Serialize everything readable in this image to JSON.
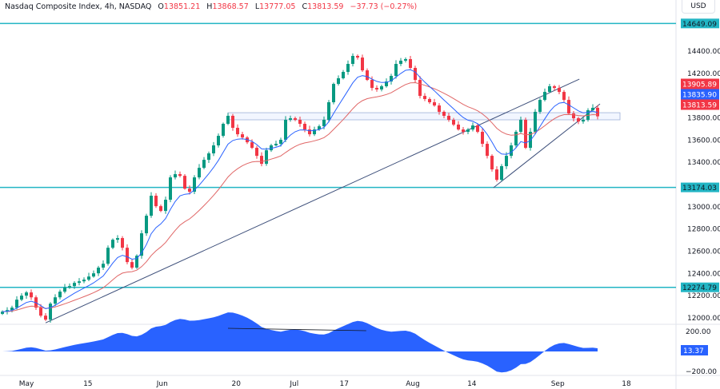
{
  "header": {
    "symbol": "Nasdaq Composite Index, 4h, NASDAQ",
    "open_k": "O",
    "open": "13851.21",
    "high_k": "H",
    "high": "13868.57",
    "low_k": "L",
    "low": "13777.05",
    "close_k": "C",
    "close": "13813.59",
    "change": "−37.73 (−0.27%)"
  },
  "currency": "USD",
  "colors": {
    "up": "#089981",
    "down": "#f23645",
    "level": "#22b5c4",
    "fast_ma": "#2962ff",
    "slow_ma": "#e06666",
    "trend": "#3d4f7a",
    "oscillator": "#2962ff"
  },
  "chart_data": {
    "type": "candlestick",
    "timeframe": "4h",
    "price_axis": {
      "ticks": [
        14400,
        14200,
        13800,
        13600,
        13400,
        13000,
        12800,
        12600,
        12400,
        12200,
        12000
      ],
      "range": [
        11950,
        14880
      ]
    },
    "price_tick_labels": [
      "14400.00",
      "14200.00",
      "13800.00",
      "13600.00",
      "13400.00",
      "13000.00",
      "12800.00",
      "12600.00",
      "12400.00",
      "12200.00",
      "12000.00"
    ],
    "time_ticks": [
      {
        "label": "May",
        "at": 5
      },
      {
        "label": "15",
        "at": 17.8
      },
      {
        "label": "Jun",
        "at": 33.3
      },
      {
        "label": "20",
        "at": 48.7
      },
      {
        "label": "Jul",
        "at": 60.8
      },
      {
        "label": "17",
        "at": 71.2
      },
      {
        "label": "Aug",
        "at": 85.5
      },
      {
        "label": "14",
        "at": 97.8
      },
      {
        "label": "Sep",
        "at": 115.7
      },
      {
        "label": "18",
        "at": 130
      }
    ],
    "closes": [
      12056,
      12070,
      12092,
      12164,
      12200,
      12229,
      12185,
      12092,
      12020,
      11984,
      12128,
      12185,
      12236,
      12272,
      12286,
      12315,
      12329,
      12344,
      12372,
      12401,
      12452,
      12487,
      12631,
      12703,
      12718,
      12631,
      12502,
      12452,
      12559,
      12761,
      12919,
      13099,
      13005,
      12962,
      13063,
      13264,
      13293,
      13278,
      13163,
      13135,
      13264,
      13350,
      13422,
      13480,
      13552,
      13638,
      13746,
      13818,
      13710,
      13652,
      13623,
      13580,
      13530,
      13458,
      13386,
      13508,
      13552,
      13566,
      13602,
      13782,
      13796,
      13782,
      13746,
      13695,
      13652,
      13695,
      13724,
      13782,
      13940,
      14105,
      14156,
      14213,
      14285,
      14357,
      14342,
      14227,
      14141,
      14069,
      14055,
      14084,
      14127,
      14177,
      14285,
      14314,
      14328,
      14249,
      14141,
      13997,
      13969,
      13940,
      13911,
      13854,
      13818,
      13782,
      13739,
      13695,
      13674,
      13695,
      13731,
      13674,
      13566,
      13458,
      13336,
      13242,
      13365,
      13458,
      13552,
      13674,
      13782,
      13530,
      13674,
      13854,
      13961,
      14033,
      14084,
      14069,
      14033,
      13961,
      13839,
      13796,
      13767,
      13782,
      13868,
      13890,
      13813.59
    ],
    "horizontal_levels": [
      {
        "price": 14649.09,
        "label": "14649.09"
      },
      {
        "price": 13174.03,
        "label": "13174.03"
      },
      {
        "price": 12274.79,
        "label": "12274.79"
      }
    ],
    "zone": {
      "from": 13782,
      "to": 13846
    },
    "trendlines": [
      {
        "from": [
          9,
          11955
        ],
        "to": [
          120.2,
          14148
        ]
      },
      {
        "from": [
          102.3,
          13171
        ],
        "to": [
          124.5,
          13925
        ]
      }
    ],
    "price_labels": [
      {
        "price": 13905.89,
        "label": "13905.89",
        "color": "#f23645"
      },
      {
        "price": 13835.9,
        "label": "13835.90",
        "color": "#2962ff"
      },
      {
        "price": 13813.59,
        "label": "13813.59",
        "color": "#f23645"
      }
    ],
    "oscillator": {
      "ticks": [
        "200.00",
        "−200.00"
      ],
      "tick_values": [
        200,
        -200
      ],
      "current": "13.37",
      "trendline": {
        "from": [
          47,
          232
        ],
        "to": [
          75.8,
          208
        ]
      }
    }
  }
}
